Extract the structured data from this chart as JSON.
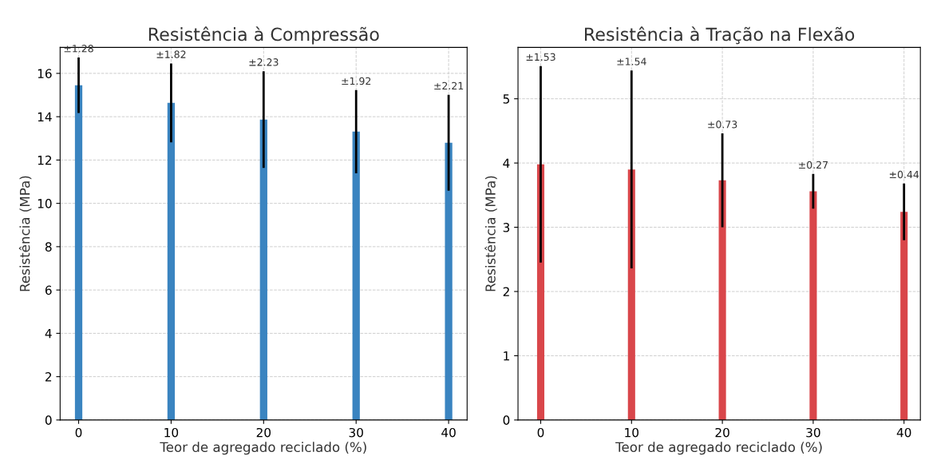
{
  "chart_data": [
    {
      "type": "bar",
      "title": "Resistência à Compressão",
      "xlabel": "Teor de agregado reciclado (%)",
      "ylabel": "Resistência (MPa)",
      "x": [
        0,
        10,
        20,
        30,
        40
      ],
      "values": [
        15.45,
        14.64,
        13.87,
        13.31,
        12.8
      ],
      "errors": [
        1.28,
        1.82,
        2.23,
        1.92,
        2.21
      ],
      "color": "#3a84c0",
      "xlim": [
        -2,
        42
      ],
      "xticks": [
        0,
        10,
        20,
        30,
        40
      ],
      "ylim": [
        0,
        17.2
      ],
      "yticks": [
        0,
        2,
        4,
        6,
        8,
        10,
        12,
        14,
        16
      ],
      "grid": true,
      "annotations": [
        {
          "text": "±1.28",
          "x": 0,
          "y": 16.73
        },
        {
          "text": "±1.82",
          "x": 10,
          "y": 16.46
        },
        {
          "text": "±2.23",
          "x": 20,
          "y": 16.1
        },
        {
          "text": "±1.92",
          "x": 30,
          "y": 15.23
        },
        {
          "text": "±2.21",
          "x": 40,
          "y": 15.01
        }
      ]
    },
    {
      "type": "bar",
      "title": "Resistência à Tração na Flexão",
      "xlabel": "Teor de agregado reciclado (%)",
      "ylabel": "Resistência (MPa)",
      "x": [
        0,
        10,
        20,
        30,
        40
      ],
      "values": [
        3.98,
        3.9,
        3.73,
        3.56,
        3.24
      ],
      "errors": [
        1.53,
        1.54,
        0.73,
        0.27,
        0.44
      ],
      "color": "#d9464a",
      "xlim": [
        -2.5,
        41.8
      ],
      "xticks": [
        0,
        10,
        20,
        30,
        40
      ],
      "ylim": [
        0,
        5.8
      ],
      "yticks": [
        0,
        1,
        2,
        3,
        4,
        5
      ],
      "grid": true,
      "annotations": [
        {
          "text": "±1.53",
          "x": 0,
          "y": 5.51
        },
        {
          "text": "±1.54",
          "x": 10,
          "y": 5.44
        },
        {
          "text": "±0.73",
          "x": 20,
          "y": 4.46
        },
        {
          "text": "±0.27",
          "x": 30,
          "y": 3.83
        },
        {
          "text": "±0.44",
          "x": 40,
          "y": 3.68
        }
      ]
    }
  ]
}
